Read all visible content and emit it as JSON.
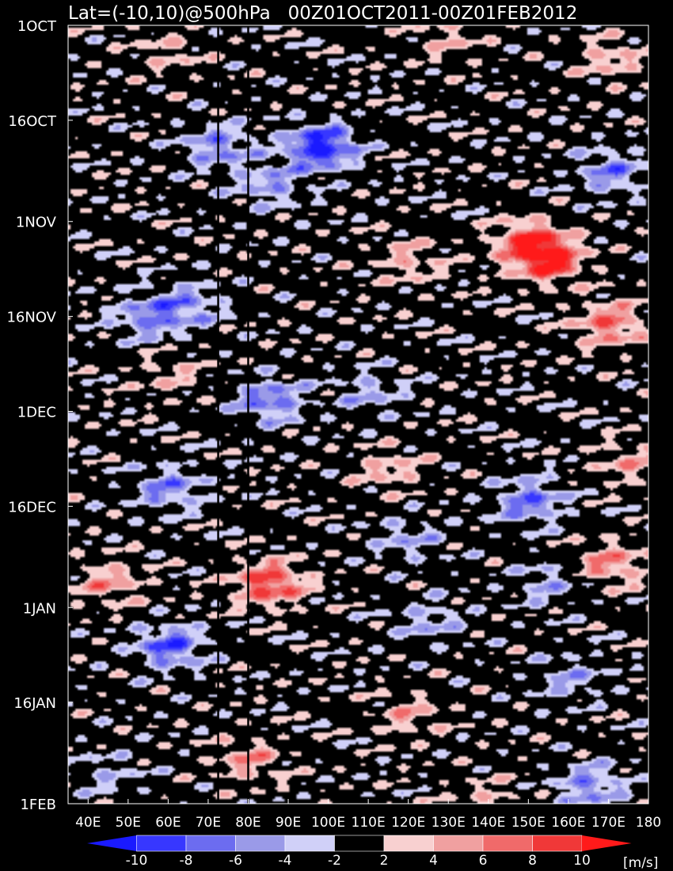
{
  "chart_data": {
    "type": "heatmap",
    "title": "Lat=(-10,10)@500hPa   00Z01OCT2011-00Z01FEB2012",
    "x_range": [
      35,
      180
    ],
    "x_tick_values": [
      40,
      50,
      60,
      70,
      80,
      90,
      100,
      110,
      120,
      130,
      140,
      150,
      160,
      170,
      180
    ],
    "x_tick_labels": [
      "40E",
      "50E",
      "60E",
      "70E",
      "80E",
      "90E",
      "100E",
      "110E",
      "120E",
      "130E",
      "140E",
      "150E",
      "160E",
      "170E",
      "180"
    ],
    "y_range": [
      "2011-10-01",
      "2012-02-01"
    ],
    "y_tick_values": [
      "2011-10-01",
      "2011-10-16",
      "2011-11-01",
      "2011-11-16",
      "2011-12-01",
      "2011-12-16",
      "2012-01-01",
      "2012-01-16",
      "2012-02-01"
    ],
    "y_tick_labels": [
      "1OCT",
      "16OCT",
      "1NOV",
      "16NOV",
      "1DEC",
      "16DEC",
      "1JAN",
      "16JAN",
      "1FEB"
    ],
    "y_direction": "top-to-bottom",
    "reference_lines_x": [
      72.5,
      80
    ],
    "legend": {
      "placement": "bottom",
      "unit": "[m/s]",
      "tick_labels": [
        "-10",
        "-8",
        "-6",
        "-4",
        "-2",
        "2",
        "4",
        "6",
        "8",
        "10"
      ],
      "bins": [
        {
          "range": "< -10",
          "color": "#1a1aff"
        },
        {
          "range": "-10 to -8",
          "color": "#3737ff"
        },
        {
          "range": "-8 to -6",
          "color": "#6c6cf0"
        },
        {
          "range": "-6 to -4",
          "color": "#9a9ae8"
        },
        {
          "range": "-4 to -2",
          "color": "#d0d0f8"
        },
        {
          "range": "-2 to 2",
          "color": "#000000"
        },
        {
          "range": "2 to 4",
          "color": "#f8d0d0"
        },
        {
          "range": "4 to 6",
          "color": "#f0a0a0"
        },
        {
          "range": "6 to 8",
          "color": "#f06a6a"
        },
        {
          "range": "8 to 10",
          "color": "#f03838"
        },
        {
          "range": "> 10",
          "color": "#ff1a1a"
        }
      ]
    },
    "anomaly_centers": [
      {
        "lon": 98,
        "date": "2011-10-20",
        "value": -11
      },
      {
        "lon": 72,
        "date": "2011-10-20",
        "value": -6
      },
      {
        "lon": 85,
        "date": "2011-10-26",
        "value": -5
      },
      {
        "lon": 170,
        "date": "2011-10-24",
        "value": -6
      },
      {
        "lon": 150,
        "date": "2011-11-04",
        "value": 8
      },
      {
        "lon": 155,
        "date": "2011-11-07",
        "value": 9
      },
      {
        "lon": 170,
        "date": "2011-11-17",
        "value": 7
      },
      {
        "lon": 120,
        "date": "2011-11-07",
        "value": 4
      },
      {
        "lon": 55,
        "date": "2011-11-16",
        "value": -6
      },
      {
        "lon": 65,
        "date": "2011-11-14",
        "value": -5
      },
      {
        "lon": 85,
        "date": "2011-11-29",
        "value": -7
      },
      {
        "lon": 60,
        "date": "2011-11-25",
        "value": 3
      },
      {
        "lon": 110,
        "date": "2011-11-28",
        "value": -4
      },
      {
        "lon": 60,
        "date": "2011-12-13",
        "value": -6
      },
      {
        "lon": 115,
        "date": "2011-12-10",
        "value": 4
      },
      {
        "lon": 175,
        "date": "2011-12-09",
        "value": 4
      },
      {
        "lon": 150,
        "date": "2011-12-15",
        "value": -7
      },
      {
        "lon": 120,
        "date": "2011-12-21",
        "value": -4
      },
      {
        "lon": 85,
        "date": "2011-12-28",
        "value": 9
      },
      {
        "lon": 45,
        "date": "2011-12-28",
        "value": 5
      },
      {
        "lon": 170,
        "date": "2011-12-25",
        "value": 6
      },
      {
        "lon": 155,
        "date": "2011-12-28",
        "value": -4
      },
      {
        "lon": 60,
        "date": "2012-01-07",
        "value": -8
      },
      {
        "lon": 125,
        "date": "2012-01-03",
        "value": -4
      },
      {
        "lon": 160,
        "date": "2012-01-12",
        "value": -4
      },
      {
        "lon": 80,
        "date": "2012-01-25",
        "value": 5
      },
      {
        "lon": 120,
        "date": "2012-01-18",
        "value": 4
      },
      {
        "lon": 140,
        "date": "2012-01-31",
        "value": 3
      },
      {
        "lon": 165,
        "date": "2012-01-29",
        "value": -6
      },
      {
        "lon": 45,
        "date": "2012-01-27",
        "value": -3
      },
      {
        "lon": 130,
        "date": "2011-10-03",
        "value": 3
      },
      {
        "lon": 170,
        "date": "2011-10-06",
        "value": 4
      },
      {
        "lon": 60,
        "date": "2011-10-05",
        "value": 3
      }
    ]
  }
}
